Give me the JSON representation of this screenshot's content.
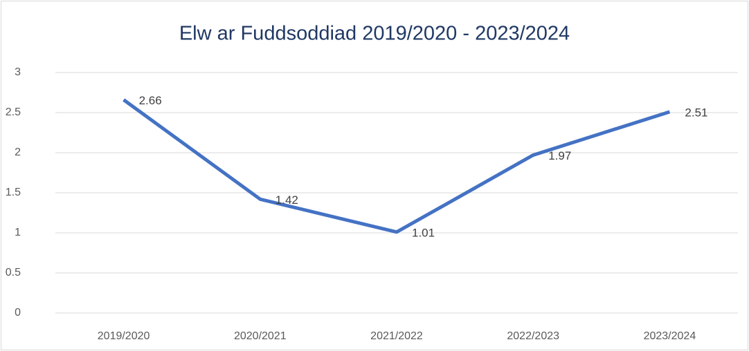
{
  "chart_data": {
    "type": "line",
    "title": "Elw ar Fuddsoddiad 2019/2020 - 2023/2024",
    "categories": [
      "2019/2020",
      "2020/2021",
      "2021/2022",
      "2022/2023",
      "2023/2024"
    ],
    "series": [
      {
        "name": "Elw ar Fuddsoddiad",
        "color": "#4472c4",
        "values": [
          2.66,
          1.42,
          1.01,
          1.97,
          2.51
        ]
      }
    ],
    "ylim": [
      0,
      3
    ],
    "yticks": [
      0,
      0.5,
      1,
      1.5,
      2,
      2.5,
      3
    ],
    "grid": true
  }
}
